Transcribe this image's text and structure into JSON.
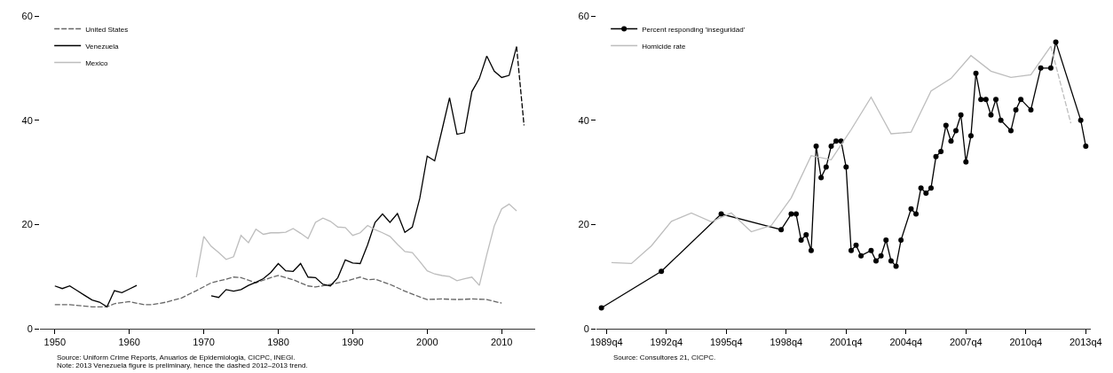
{
  "chart_data": [
    {
      "type": "line",
      "x": [
        1950,
        1951,
        1952,
        1953,
        1954,
        1955,
        1956,
        1957,
        1958,
        1959,
        1960,
        1961,
        1962,
        1963,
        1964,
        1965,
        1966,
        1967,
        1968,
        1969,
        1970,
        1971,
        1972,
        1973,
        1974,
        1975,
        1976,
        1977,
        1978,
        1979,
        1980,
        1981,
        1982,
        1983,
        1984,
        1985,
        1986,
        1987,
        1988,
        1989,
        1990,
        1991,
        1992,
        1993,
        1994,
        1995,
        1996,
        1997,
        1998,
        1999,
        2000,
        2001,
        2002,
        2003,
        2004,
        2005,
        2006,
        2007,
        2008,
        2009,
        2010,
        2011,
        2012
      ],
      "series": [
        {
          "name": "United States",
          "color": "#666666",
          "line_style": "dashed",
          "x": [
            1950,
            1952,
            1955,
            1957,
            1958,
            1960,
            1962,
            1963,
            1965,
            1967,
            1969,
            1971,
            1973,
            1974,
            1975,
            1977,
            1979,
            1980,
            1982,
            1984,
            1985,
            1987,
            1989,
            1991,
            1992,
            1993,
            1995,
            1997,
            1999,
            2000,
            2002,
            2004,
            2006,
            2008,
            2010
          ],
          "values": [
            4.6,
            4.6,
            4.2,
            4.2,
            4.8,
            5.2,
            4.6,
            4.6,
            5.1,
            5.9,
            7.3,
            8.8,
            9.5,
            9.9,
            9.8,
            8.8,
            9.8,
            10.2,
            9.4,
            8.2,
            8.0,
            8.5,
            9.1,
            9.9,
            9.4,
            9.5,
            8.5,
            7.2,
            6.1,
            5.6,
            5.7,
            5.6,
            5.7,
            5.6,
            4.9
          ]
        },
        {
          "name": "Venezuela",
          "color": "#000000",
          "line_style": "solid",
          "values": [
            8.2,
            7.7,
            8.2,
            7.3,
            6.4,
            5.5,
            5.1,
            4.2,
            7.3,
            6.9,
            7.6,
            8.3,
            null,
            null,
            null,
            null,
            null,
            null,
            null,
            null,
            null,
            6.3,
            6.0,
            7.5,
            7.2,
            7.5,
            8.3,
            8.9,
            9.6,
            10.8,
            12.5,
            11.1,
            11.0,
            12.5,
            9.9,
            9.8,
            8.5,
            8.2,
            9.8,
            13.2,
            12.6,
            12.5,
            16.1,
            20.4,
            22.0,
            20.4,
            22.1,
            18.5,
            19.5,
            25.0,
            33.1,
            32.2,
            38.2,
            44.3,
            37.3,
            37.6,
            45.5,
            48.0,
            52.3,
            49.4,
            48.2,
            48.6,
            54.1
          ]
        },
        {
          "name": "Mexico",
          "color": "#bdbdbd",
          "line_style": "solid",
          "x": [
            1969,
            1970,
            1971,
            1972,
            1973,
            1974,
            1975,
            1976,
            1977,
            1978,
            1979,
            1980,
            1981,
            1982,
            1983,
            1984,
            1985,
            1986,
            1987,
            1988,
            1989,
            1990,
            1991,
            1992,
            1993,
            1994,
            1995,
            1996,
            1997,
            1998,
            1999,
            2000,
            2001,
            2002,
            2003,
            2004,
            2005,
            2006,
            2007,
            2008,
            2009,
            2010,
            2011,
            2012
          ],
          "values": [
            9.9,
            17.7,
            15.8,
            14.6,
            13.3,
            13.8,
            17.9,
            16.5,
            19.1,
            18.1,
            18.4,
            18.4,
            18.5,
            19.2,
            18.3,
            17.3,
            20.4,
            21.2,
            20.6,
            19.5,
            19.4,
            17.9,
            18.4,
            19.8,
            19.0,
            18.4,
            17.7,
            16.2,
            14.8,
            14.6,
            12.9,
            11.1,
            10.5,
            10.2,
            10.0,
            9.2,
            9.6,
            9.9,
            8.3,
            14.2,
            19.7,
            23.0,
            23.9,
            22.6
          ]
        },
        {
          "color": "#000000",
          "line_style": "dashed",
          "x": [
            2012,
            2013
          ],
          "values": [
            54.1,
            39.0
          ]
        }
      ],
      "xlim": [
        1948,
        2014.5
      ],
      "xticks": [
        1950,
        1960,
        1970,
        1980,
        1990,
        2000,
        2010
      ],
      "ylim": [
        0,
        60
      ],
      "yticks": [
        0,
        20,
        40,
        60
      ],
      "grid": false,
      "legend": "top left",
      "annotations": [
        "Source: Uniform Crime Reports, Anuarios de Epidemiologia, CICPC, INEGI.",
        "Note: 2013 Venezuela figure is preliminary, hence the dashed 2012–2013 trend."
      ]
    },
    {
      "type": "line",
      "series": [
        {
          "name": "Percent responding 'inseguridad'",
          "color": "#000000",
          "line_style": "solid",
          "marker": "circle",
          "x": [
            "1989-07",
            "1992-07",
            "1995-07",
            "1998-07",
            "1999-01",
            "1999-04",
            "1999-07",
            "1999-10",
            "2000-01",
            "2000-04",
            "2000-07",
            "2000-10",
            "2001-01",
            "2001-04",
            "2001-07",
            "2001-10",
            "2002-01",
            "2002-04",
            "2002-07",
            "2003-01",
            "2003-04",
            "2003-07",
            "2003-10",
            "2004-01",
            "2004-04",
            "2004-07",
            "2005-01",
            "2005-04",
            "2005-07",
            "2005-10",
            "2006-01",
            "2006-04",
            "2006-07",
            "2006-10",
            "2007-01",
            "2007-04",
            "2007-07",
            "2007-10",
            "2008-01",
            "2008-04",
            "2008-07",
            "2008-10",
            "2009-01",
            "2009-04",
            "2009-07",
            "2010-01",
            "2010-04",
            "2010-07",
            "2011-01",
            "2011-07",
            "2012-01",
            "2012-04",
            "2013-07",
            "2013-10"
          ],
          "values": [
            4,
            11,
            22,
            19,
            22,
            22,
            17,
            18,
            15,
            35,
            29,
            31,
            35,
            36,
            36,
            31,
            15,
            16,
            14,
            15,
            13,
            14,
            17,
            13,
            12,
            17,
            23,
            22,
            27,
            26,
            27,
            33,
            34,
            39,
            36,
            38,
            41,
            32,
            37,
            49,
            44,
            44,
            41,
            44,
            40,
            38,
            42,
            44,
            42,
            50,
            50,
            55,
            40,
            35
          ]
        },
        {
          "name": "Homicide rate",
          "color": "#bdbdbd",
          "line_style": "solid",
          "x": [
            "1990-01",
            "1991-01",
            "1992-01",
            "1993-01",
            "1994-01",
            "1995-01",
            "1996-01",
            "1997-01",
            "1998-01",
            "1999-01",
            "2000-01",
            "2001-01",
            "2002-01",
            "2003-01",
            "2004-01",
            "2005-01",
            "2006-01",
            "2007-01",
            "2008-01",
            "2009-01",
            "2010-01",
            "2011-01",
            "2012-01"
          ],
          "values": [
            12.7,
            12.5,
            15.9,
            20.6,
            22.2,
            20.5,
            22.2,
            18.6,
            19.8,
            25.1,
            33.2,
            32.4,
            38.2,
            44.4,
            37.4,
            37.7,
            45.6,
            48.0,
            52.4,
            49.4,
            48.2,
            48.7,
            54.2
          ]
        },
        {
          "color": "#bdbdbd",
          "line_style": "dashed",
          "x": [
            "2012-01",
            "2013-01"
          ],
          "values": [
            54.2,
            39.4
          ]
        }
      ],
      "xlim": [
        "1989-04",
        "2014-01"
      ],
      "xticks": [
        {
          "value": "1989-10",
          "label": "1989q4"
        },
        {
          "value": "1992-10",
          "label": "1992q4"
        },
        {
          "value": "1995-10",
          "label": "1995q4"
        },
        {
          "value": "1998-10",
          "label": "1998q4"
        },
        {
          "value": "2001-10",
          "label": "2001q4"
        },
        {
          "value": "2004-10",
          "label": "2004q4"
        },
        {
          "value": "2007-10",
          "label": "2007q4"
        },
        {
          "value": "2010-10",
          "label": "2010q4"
        },
        {
          "value": "2013-10",
          "label": "2013q4"
        }
      ],
      "ylim": [
        0,
        60
      ],
      "yticks": [
        0,
        20,
        40,
        60
      ],
      "grid": false,
      "legend": "top left",
      "annotations": [
        "Source: Consultores 21, CICPC."
      ]
    }
  ]
}
